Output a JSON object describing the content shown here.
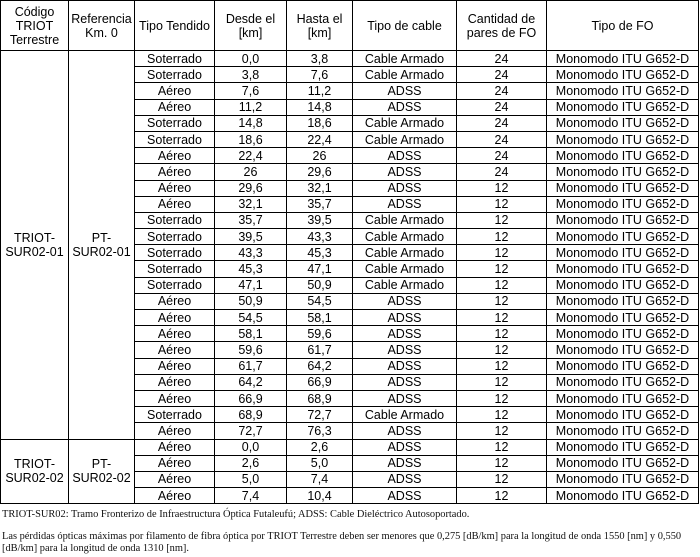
{
  "table": {
    "header": [
      "Código TRIOT Terrestre",
      "Referencia Km. 0",
      "Tipo Tendido",
      "Desde el [km]",
      "Hasta el [km]",
      "Tipo de cable",
      "Cantidad de pares de FO",
      "Tipo de FO"
    ],
    "groups": [
      {
        "code": "TRIOT-SUR02-01",
        "reference": "PT-SUR02-01",
        "rows": [
          [
            "Soterrado",
            "0,0",
            "3,8",
            "Cable Armado",
            "24",
            "Monomodo ITU G652-D"
          ],
          [
            "Soterrado",
            "3,8",
            "7,6",
            "Cable Armado",
            "24",
            "Monomodo ITU G652-D"
          ],
          [
            "Aéreo",
            "7,6",
            "11,2",
            "ADSS",
            "24",
            "Monomodo ITU G652-D"
          ],
          [
            "Aéreo",
            "11,2",
            "14,8",
            "ADSS",
            "24",
            "Monomodo ITU G652-D"
          ],
          [
            "Soterrado",
            "14,8",
            "18,6",
            "Cable Armado",
            "24",
            "Monomodo ITU G652-D"
          ],
          [
            "Soterrado",
            "18,6",
            "22,4",
            "Cable Armado",
            "24",
            "Monomodo ITU G652-D"
          ],
          [
            "Aéreo",
            "22,4",
            "26",
            "ADSS",
            "24",
            "Monomodo ITU G652-D"
          ],
          [
            "Aéreo",
            "26",
            "29,6",
            "ADSS",
            "24",
            "Monomodo ITU G652-D"
          ],
          [
            "Aéreo",
            "29,6",
            "32,1",
            "ADSS",
            "12",
            "Monomodo ITU G652-D"
          ],
          [
            "Aéreo",
            "32,1",
            "35,7",
            "ADSS",
            "12",
            "Monomodo ITU G652-D"
          ],
          [
            "Soterrado",
            "35,7",
            "39,5",
            "Cable Armado",
            "12",
            "Monomodo ITU G652-D"
          ],
          [
            "Soterrado",
            "39,5",
            "43,3",
            "Cable Armado",
            "12",
            "Monomodo ITU G652-D"
          ],
          [
            "Soterrado",
            "43,3",
            "45,3",
            "Cable Armado",
            "12",
            "Monomodo ITU G652-D"
          ],
          [
            "Soterrado",
            "45,3",
            "47,1",
            "Cable Armado",
            "12",
            "Monomodo ITU G652-D"
          ],
          [
            "Soterrado",
            "47,1",
            "50,9",
            "Cable Armado",
            "12",
            "Monomodo ITU G652-D"
          ],
          [
            "Aéreo",
            "50,9",
            "54,5",
            "ADSS",
            "12",
            "Monomodo ITU G652-D"
          ],
          [
            "Aéreo",
            "54,5",
            "58,1",
            "ADSS",
            "12",
            "Monomodo ITU G652-D"
          ],
          [
            "Aéreo",
            "58,1",
            "59,6",
            "ADSS",
            "12",
            "Monomodo ITU G652-D"
          ],
          [
            "Aéreo",
            "59,6",
            "61,7",
            "ADSS",
            "12",
            "Monomodo ITU G652-D"
          ],
          [
            "Aéreo",
            "61,7",
            "64,2",
            "ADSS",
            "12",
            "Monomodo ITU G652-D"
          ],
          [
            "Aéreo",
            "64,2",
            "66,9",
            "ADSS",
            "12",
            "Monomodo ITU G652-D"
          ],
          [
            "Aéreo",
            "66,9",
            "68,9",
            "ADSS",
            "12",
            "Monomodo ITU G652-D"
          ],
          [
            "Soterrado",
            "68,9",
            "72,7",
            "Cable Armado",
            "12",
            "Monomodo ITU G652-D"
          ],
          [
            "Aéreo",
            "72,7",
            "76,3",
            "ADSS",
            "12",
            "Monomodo ITU G652-D"
          ]
        ]
      },
      {
        "code": "TRIOT-SUR02-02",
        "reference": "PT-SUR02-02",
        "rows": [
          [
            "Aéreo",
            "0,0",
            "2,6",
            "ADSS",
            "12",
            "Monomodo ITU G652-D"
          ],
          [
            "Aéreo",
            "2,6",
            "5,0",
            "ADSS",
            "12",
            "Monomodo ITU G652-D"
          ],
          [
            "Aéreo",
            "5,0",
            "7,4",
            "ADSS",
            "12",
            "Monomodo ITU G652-D"
          ],
          [
            "Aéreo",
            "7,4",
            "10,4",
            "ADSS",
            "12",
            "Monomodo ITU G652-D"
          ]
        ]
      }
    ]
  },
  "footnote": "TRIOT-SUR02: Tramo Fronterizo de Infraestructura Óptica Futaleufú; ADSS: Cable Dieléctrico Autosoportado.",
  "paragraph": "Las pérdidas ópticas máximas por filamento de fibra óptica por TRIOT Terrestre deben ser menores que 0,275 [dB/km] para la longitud de onda 1550 [nm] y 0,550 [dB/km] para la longitud de onda 1310 [nm]."
}
